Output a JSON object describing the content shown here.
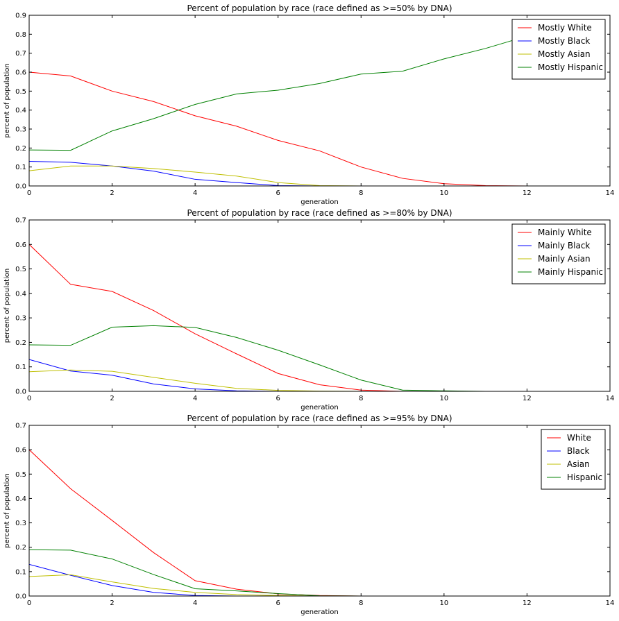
{
  "figure": {
    "background": "#ffffff"
  },
  "chart_data": [
    {
      "type": "line",
      "title": "Percent of population by race (race defined as >=50% by DNA)",
      "xlabel": "generation",
      "ylabel": "percent of population",
      "xlim": [
        0,
        14
      ],
      "ylim": [
        0,
        0.9
      ],
      "xticks": [
        0,
        2,
        4,
        6,
        8,
        10,
        12,
        14
      ],
      "yticks": [
        0.0,
        0.1,
        0.2,
        0.3,
        0.4,
        0.5,
        0.6,
        0.7,
        0.8,
        0.9
      ],
      "xtick_labels": [
        "0",
        "2",
        "4",
        "6",
        "8",
        "10",
        "12",
        "14"
      ],
      "ytick_labels": [
        "0.0",
        "0.1",
        "0.2",
        "0.3",
        "0.4",
        "0.5",
        "0.6",
        "0.7",
        "0.8",
        "0.9"
      ],
      "legend_position": "top-right",
      "grid": false,
      "x": [
        0,
        1,
        2,
        3,
        4,
        5,
        6,
        7,
        8,
        9,
        10,
        11,
        12,
        13
      ],
      "series": [
        {
          "name": "Mostly White",
          "color": "#ff0000",
          "values": [
            0.6,
            0.58,
            0.5,
            0.445,
            0.37,
            0.315,
            0.24,
            0.185,
            0.1,
            0.04,
            0.012,
            0.002,
            0.0,
            0.0
          ]
        },
        {
          "name": "Mostly Black",
          "color": "#0000ff",
          "values": [
            0.13,
            0.125,
            0.105,
            0.078,
            0.035,
            0.018,
            0.002,
            0.0,
            0.0,
            0.0,
            0.0,
            0.0,
            0.0,
            0.0
          ]
        },
        {
          "name": "Mostly Asian",
          "color": "#bfbf00",
          "values": [
            0.08,
            0.105,
            0.105,
            0.092,
            0.073,
            0.052,
            0.018,
            0.002,
            0.0,
            0.0,
            0.0,
            0.0,
            0.0,
            0.0
          ]
        },
        {
          "name": "Mostly Hispanic",
          "color": "#008000",
          "values": [
            0.19,
            0.188,
            0.29,
            0.355,
            0.43,
            0.485,
            0.505,
            0.54,
            0.59,
            0.605,
            0.67,
            0.725,
            0.79,
            0.85
          ]
        }
      ]
    },
    {
      "type": "line",
      "title": "Percent of population by race (race defined as >=80% by DNA)",
      "xlabel": "generation",
      "ylabel": "percent of population",
      "xlim": [
        0,
        14
      ],
      "ylim": [
        0,
        0.7
      ],
      "xticks": [
        0,
        2,
        4,
        6,
        8,
        10,
        12,
        14
      ],
      "yticks": [
        0.0,
        0.1,
        0.2,
        0.3,
        0.4,
        0.5,
        0.6,
        0.7
      ],
      "xtick_labels": [
        "0",
        "2",
        "4",
        "6",
        "8",
        "10",
        "12",
        "14"
      ],
      "ytick_labels": [
        "0.0",
        "0.1",
        "0.2",
        "0.3",
        "0.4",
        "0.5",
        "0.6",
        "0.7"
      ],
      "legend_position": "top-right",
      "grid": false,
      "x": [
        0,
        1,
        2,
        3,
        4,
        5,
        6,
        7,
        8,
        9,
        10,
        11,
        12,
        13
      ],
      "series": [
        {
          "name": "Mainly White",
          "color": "#ff0000",
          "values": [
            0.6,
            0.437,
            0.408,
            0.33,
            0.235,
            0.153,
            0.073,
            0.027,
            0.005,
            0.0,
            0.0,
            0.0,
            0.0,
            0.0
          ]
        },
        {
          "name": "Mainly Black",
          "color": "#0000ff",
          "values": [
            0.13,
            0.083,
            0.066,
            0.03,
            0.01,
            0.002,
            0.0,
            0.0,
            0.0,
            0.0,
            0.0,
            0.0,
            0.0,
            0.0
          ]
        },
        {
          "name": "Mainly Asian",
          "color": "#bfbf00",
          "values": [
            0.08,
            0.087,
            0.082,
            0.057,
            0.033,
            0.012,
            0.004,
            0.001,
            0.0,
            0.0,
            0.0,
            0.0,
            0.0,
            0.0
          ]
        },
        {
          "name": "Mainly Hispanic",
          "color": "#008000",
          "values": [
            0.19,
            0.188,
            0.262,
            0.268,
            0.261,
            0.22,
            0.168,
            0.108,
            0.046,
            0.005,
            0.002,
            0.0,
            0.0,
            0.0
          ]
        }
      ]
    },
    {
      "type": "line",
      "title": "Percent of population by race (race defined as >=95% by DNA)",
      "xlabel": "generation",
      "ylabel": "percent of population",
      "xlim": [
        0,
        14
      ],
      "ylim": [
        0,
        0.7
      ],
      "xticks": [
        0,
        2,
        4,
        6,
        8,
        10,
        12,
        14
      ],
      "yticks": [
        0.0,
        0.1,
        0.2,
        0.3,
        0.4,
        0.5,
        0.6,
        0.7
      ],
      "xtick_labels": [
        "0",
        "2",
        "4",
        "6",
        "8",
        "10",
        "12",
        "14"
      ],
      "ytick_labels": [
        "0.0",
        "0.1",
        "0.2",
        "0.3",
        "0.4",
        "0.5",
        "0.6",
        "0.7"
      ],
      "legend_position": "top-right",
      "grid": false,
      "x": [
        0,
        1,
        2,
        3,
        4,
        5,
        6,
        7,
        8,
        9,
        10,
        11,
        12,
        13
      ],
      "series": [
        {
          "name": "White",
          "color": "#ff0000",
          "values": [
            0.6,
            0.44,
            0.31,
            0.178,
            0.063,
            0.028,
            0.009,
            0.002,
            0.0,
            0.0,
            0.0,
            0.0,
            0.0,
            0.0
          ]
        },
        {
          "name": "Black",
          "color": "#0000ff",
          "values": [
            0.13,
            0.085,
            0.043,
            0.015,
            0.002,
            0.0,
            0.0,
            0.0,
            0.0,
            0.0,
            0.0,
            0.0,
            0.0,
            0.0
          ]
        },
        {
          "name": "Asian",
          "color": "#bfbf00",
          "values": [
            0.08,
            0.087,
            0.058,
            0.031,
            0.015,
            0.006,
            0.002,
            0.0,
            0.0,
            0.0,
            0.0,
            0.0,
            0.0,
            0.0
          ]
        },
        {
          "name": "Hispanic",
          "color": "#008000",
          "values": [
            0.19,
            0.188,
            0.152,
            0.088,
            0.03,
            0.021,
            0.01,
            0.001,
            0.0,
            0.0,
            0.0,
            0.0,
            0.0,
            0.0
          ]
        }
      ]
    }
  ]
}
